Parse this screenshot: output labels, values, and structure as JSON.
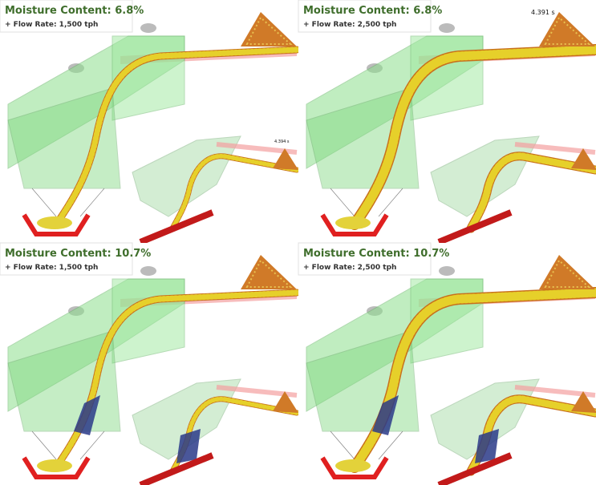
{
  "panels": [
    {
      "moisture": "Moisture Content: 6.8%",
      "flow": "+ Flow Rate: 1,500 tph",
      "inset_time": "4.394 s"
    },
    {
      "moisture": "Moisture Content: 6.8%",
      "flow": "+ Flow Rate: 2,500 tph",
      "time": "4.391 s"
    },
    {
      "moisture": "Moisture Content: 10.7%",
      "flow": "+ Flow Rate: 1,500 tph"
    },
    {
      "moisture": "Moisture Content: 10.7%",
      "flow": "+ Flow Rate: 2,500 tph"
    }
  ]
}
